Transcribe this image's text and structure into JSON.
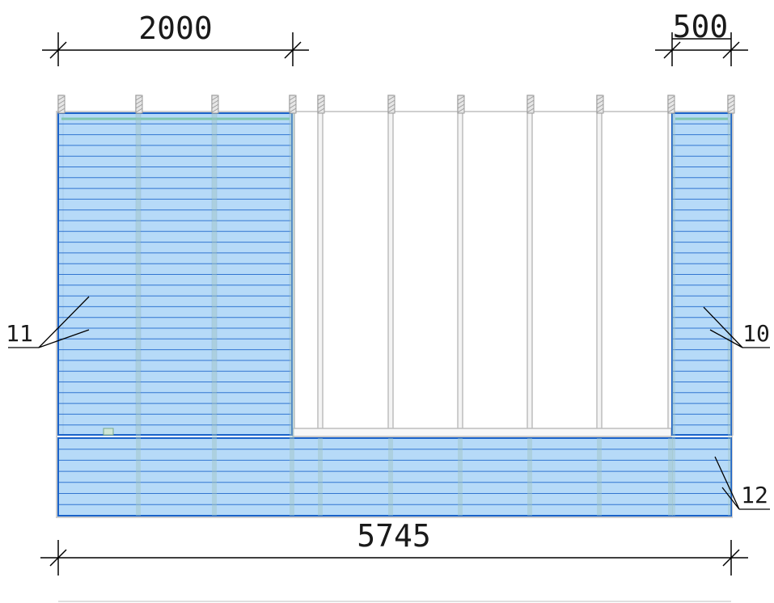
{
  "dimensions": {
    "top_left": "2000",
    "top_right": "500",
    "bottom": "5745"
  },
  "callouts": {
    "left_panel": "11",
    "right_panel": "10",
    "bottom_panel": "12"
  },
  "colors": {
    "panel_fill": "#a9d4f7",
    "panel_stroke": "#1b63c9",
    "board_line": "#1b63c9",
    "frame": "#b8b8b8",
    "dimension_line": "#000000"
  }
}
